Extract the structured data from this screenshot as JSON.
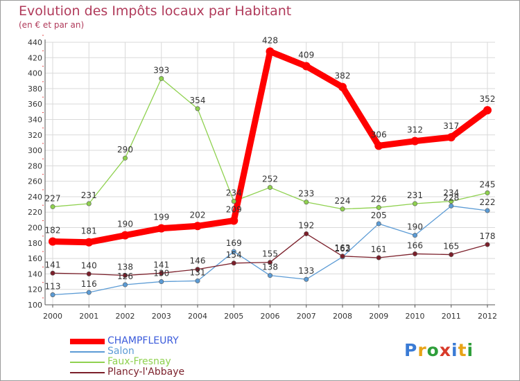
{
  "title": "Evolution des Impôts locaux par Habitant",
  "subtitle": "(en € et par an)",
  "logo": {
    "text": "Proxiti",
    "letters": [
      {
        "ch": "P",
        "color": "#3a7bd5"
      },
      {
        "ch": "r",
        "color": "#e8a317"
      },
      {
        "ch": "o",
        "color": "#2e9e3a"
      },
      {
        "ch": "x",
        "color": "#d83a2a"
      },
      {
        "ch": "i",
        "color": "#3a7bd5"
      },
      {
        "ch": "t",
        "color": "#e8a317"
      },
      {
        "ch": "i",
        "color": "#2e9e3a"
      }
    ]
  },
  "chart_data": {
    "type": "line",
    "title": "Evolution des Impôts locaux par Habitant",
    "subtitle": "(en € et par an)",
    "xlabel": "",
    "ylabel": "",
    "ylim": [
      100,
      440
    ],
    "ystep": 20,
    "grid": true,
    "legend": "bottom-left",
    "x": [
      "2000",
      "2001",
      "2002",
      "2003",
      "2004",
      "2005",
      "2006",
      "2007",
      "2008",
      "2009",
      "2010",
      "2011",
      "2012"
    ],
    "series": [
      {
        "name": "CHAMPFLEURY",
        "color": "#ff0000",
        "legend_color": "#3b5bdb",
        "values": [
          182,
          181,
          190,
          199,
          202,
          209,
          428,
          409,
          382,
          306,
          312,
          317,
          352
        ]
      },
      {
        "name": "Salon",
        "color": "#5b9bd5",
        "legend_color": "#5b9bd5",
        "values": [
          113,
          116,
          126,
          130,
          131,
          169,
          138,
          133,
          162,
          205,
          190,
          228,
          222
        ]
      },
      {
        "name": "Faux-Fresnay",
        "color": "#8fd14f",
        "legend_color": "#8fd14f",
        "values": [
          227,
          231,
          290,
          393,
          354,
          234,
          252,
          233,
          224,
          226,
          231,
          234,
          245
        ]
      },
      {
        "name": "Plancy-l'Abbaye",
        "color": "#7b1f2a",
        "legend_color": "#7b1f2a",
        "values": [
          141,
          140,
          138,
          141,
          146,
          154,
          155,
          192,
          163,
          161,
          166,
          165,
          178
        ]
      }
    ]
  }
}
